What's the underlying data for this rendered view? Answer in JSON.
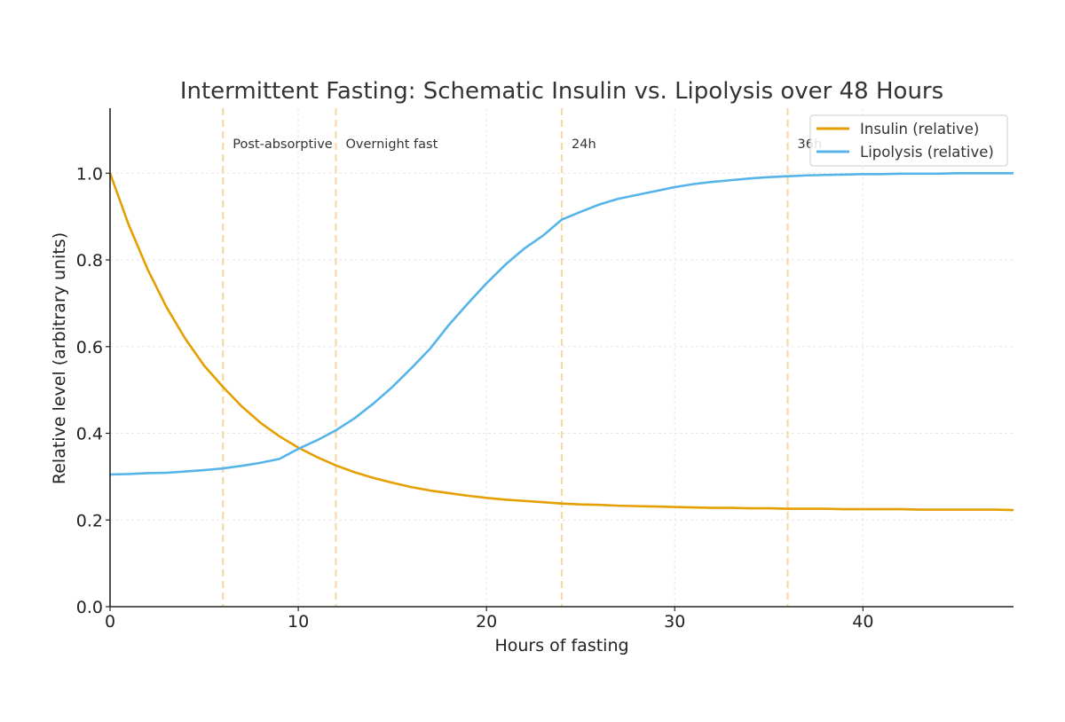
{
  "chart_data": {
    "type": "line",
    "title": "Intermittent Fasting: Schematic Insulin vs. Lipolysis over 48 Hours",
    "xlabel": "Hours of fasting",
    "ylabel": "Relative level (arbitrary units)",
    "xlim": [
      0,
      48
    ],
    "ylim": [
      0,
      1.15
    ],
    "xticks": [
      0,
      10,
      20,
      30,
      40
    ],
    "xtick_labels": [
      "0",
      "10",
      "20",
      "30",
      "40"
    ],
    "yticks": [
      0.0,
      0.2,
      0.4,
      0.6,
      0.8,
      1.0
    ],
    "ytick_labels": [
      "0.0",
      "0.2",
      "0.4",
      "0.6",
      "0.8",
      "1.0"
    ],
    "grid": true,
    "legend_position": "top-right",
    "x": [
      0,
      1,
      2,
      3,
      4,
      5,
      6,
      7,
      8,
      9,
      10,
      11,
      12,
      13,
      14,
      15,
      16,
      17,
      18,
      19,
      20,
      21,
      22,
      23,
      24,
      25,
      26,
      27,
      28,
      29,
      30,
      31,
      32,
      33,
      34,
      35,
      36,
      37,
      38,
      39,
      40,
      41,
      42,
      43,
      44,
      45,
      46,
      47,
      48
    ],
    "series": [
      {
        "name": "Insulin (relative)",
        "color": "#E69F00",
        "values": [
          1.0,
          0.88,
          0.778,
          0.691,
          0.618,
          0.556,
          0.507,
          0.462,
          0.424,
          0.393,
          0.367,
          0.345,
          0.326,
          0.31,
          0.297,
          0.286,
          0.276,
          0.268,
          0.262,
          0.256,
          0.251,
          0.247,
          0.244,
          0.241,
          0.238,
          0.236,
          0.235,
          0.233,
          0.232,
          0.231,
          0.23,
          0.229,
          0.228,
          0.228,
          0.227,
          0.227,
          0.226,
          0.226,
          0.226,
          0.225,
          0.225,
          0.225,
          0.225,
          0.224,
          0.224,
          0.224,
          0.224,
          0.224,
          0.223
        ]
      },
      {
        "name": "Lipolysis (relative)",
        "color": "#56B4E9",
        "values": [
          0.305,
          0.306,
          0.308,
          0.309,
          0.312,
          0.315,
          0.319,
          0.325,
          0.332,
          0.341,
          0.364,
          0.384,
          0.407,
          0.435,
          0.469,
          0.507,
          0.55,
          0.595,
          0.65,
          0.699,
          0.746,
          0.789,
          0.826,
          0.856,
          0.893,
          0.911,
          0.928,
          0.941,
          0.95,
          0.959,
          0.968,
          0.975,
          0.98,
          0.984,
          0.988,
          0.991,
          0.993,
          0.995,
          0.996,
          0.997,
          0.998,
          0.998,
          0.999,
          0.999,
          0.999,
          1.0,
          1.0,
          1.0,
          1.0
        ]
      }
    ],
    "reference_lines": [
      {
        "x": 6,
        "label": "Post-absorptive"
      },
      {
        "x": 12,
        "label": "Overnight fast"
      },
      {
        "x": 24,
        "label": "24h"
      },
      {
        "x": 36,
        "label": "36h"
      }
    ],
    "reference_line_color": "#F5D9A8"
  }
}
